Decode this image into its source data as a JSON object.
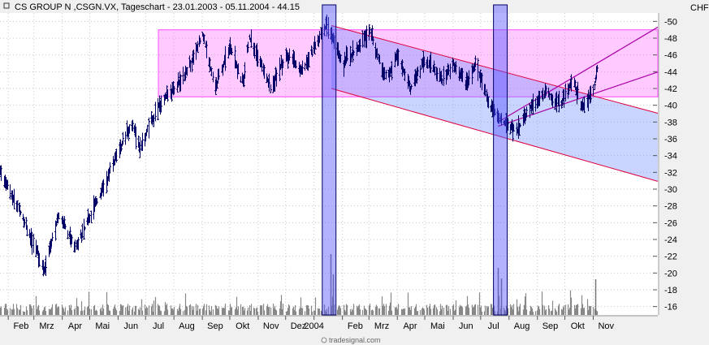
{
  "header": {
    "title": "CS GROUP N ,CSGN.VX, Tageschart - 23.01.2003 - 05.11.2004 - 44.15",
    "currency": "CHF"
  },
  "watermark": "tradesignal.com",
  "chart_data": {
    "type": "candlestick",
    "instrument": "CS GROUP N ,CSGN.VX",
    "period": "Tageschart",
    "date_range": [
      "23.01.2003",
      "05.11.2004"
    ],
    "last_price": 44.15,
    "ylim": [
      15,
      51
    ],
    "y_ticks": [
      16,
      18,
      20,
      22,
      24,
      26,
      28,
      30,
      32,
      34,
      36,
      38,
      40,
      42,
      44,
      46,
      48,
      50
    ],
    "x_ticks": [
      "Feb",
      "Mrz",
      "Apr",
      "Mai",
      "Jun",
      "Jul",
      "Aug",
      "Sep",
      "Okt",
      "Nov",
      "Dez",
      "2004",
      "Feb",
      "Mrz",
      "Apr",
      "Mai",
      "Jun",
      "Jul",
      "Aug",
      "Sep",
      "Okt",
      "Nov"
    ],
    "price_path": [
      [
        "23.01.2003",
        32
      ],
      [
        "15.02.2003",
        27
      ],
      [
        "12.03.2003",
        20.5
      ],
      [
        "28.03.2003",
        27
      ],
      [
        "15.04.2003",
        23
      ],
      [
        "15.05.2003",
        30
      ],
      [
        "15.06.2003",
        38
      ],
      [
        "25.06.2003",
        35
      ],
      [
        "15.07.2003",
        40
      ],
      [
        "01.08.2003",
        42
      ],
      [
        "20.08.2003",
        45
      ],
      [
        "01.09.2003",
        48.5
      ],
      [
        "15.09.2003",
        42
      ],
      [
        "01.10.2003",
        47
      ],
      [
        "15.10.2003",
        42.5
      ],
      [
        "22.10.2003",
        48
      ],
      [
        "15.11.2003",
        42
      ],
      [
        "01.12.2003",
        46
      ],
      [
        "20.12.2003",
        44
      ],
      [
        "01.01.2004",
        47
      ],
      [
        "15.01.2004",
        49.5
      ],
      [
        "01.02.2004",
        45
      ],
      [
        "15.02.2004",
        46.5
      ],
      [
        "01.03.2004",
        49
      ],
      [
        "20.03.2004",
        43
      ],
      [
        "01.04.2004",
        46
      ],
      [
        "15.04.2004",
        42
      ],
      [
        "01.05.2004",
        45.5
      ],
      [
        "20.05.2004",
        43
      ],
      [
        "01.06.2004",
        45
      ],
      [
        "15.06.2004",
        42.5
      ],
      [
        "25.06.2004",
        45
      ],
      [
        "10.07.2004",
        40
      ],
      [
        "25.07.2004",
        38
      ],
      [
        "10.08.2004",
        37
      ],
      [
        "25.08.2004",
        40
      ],
      [
        "10.09.2004",
        41.5
      ],
      [
        "25.09.2004",
        40
      ],
      [
        "10.10.2004",
        43
      ],
      [
        "20.10.2004",
        39.5
      ],
      [
        "01.11.2004",
        42
      ],
      [
        "05.11.2004",
        44.15
      ]
    ],
    "volume_ticks": [
      16,
      18,
      20,
      22
    ],
    "annotations": [
      {
        "type": "rectangle",
        "color": "#ff66ff",
        "y_range": [
          41,
          49
        ],
        "x_range": [
          "15.07.2003",
          "05.11.2004"
        ]
      },
      {
        "type": "channel",
        "color": "#6688ff",
        "lines": [
          [
            [
              "20.01.2004",
              49.5
            ],
            [
              "05.11.2004",
              41
            ]
          ],
          [
            [
              "20.01.2004",
              42
            ],
            [
              "05.11.2004",
              33
            ]
          ]
        ]
      },
      {
        "type": "trendline",
        "color": "#aa00aa",
        "points": [
          [
            "20.07.2004",
            38
          ],
          [
            "05.11.2004",
            45
          ]
        ]
      },
      {
        "type": "trendline",
        "color": "#aa00aa",
        "points": [
          [
            "20.07.2004",
            37.5
          ],
          [
            "05.11.2004",
            41.5
          ]
        ]
      },
      {
        "type": "vertical_band",
        "color": "#5555ff",
        "x_range": [
          "10.01.2004",
          "25.01.2004"
        ]
      },
      {
        "type": "vertical_band",
        "color": "#5555ff",
        "x_range": [
          "15.07.2004",
          "30.07.2004"
        ]
      }
    ]
  }
}
